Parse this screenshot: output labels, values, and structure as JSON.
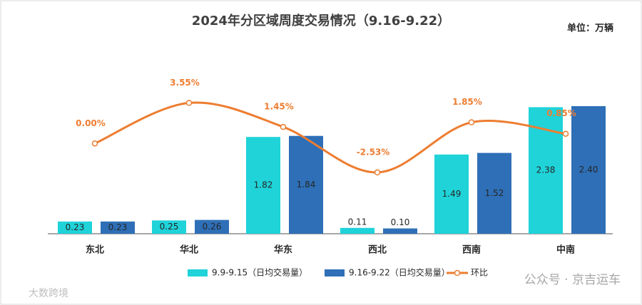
{
  "chart_data": {
    "type": "bar_line",
    "title": "2024年分区域周度交易情况（9.16-9.22）",
    "unit": "单位：万辆",
    "categories": [
      "东北",
      "华北",
      "华东",
      "西北",
      "西南",
      "中南"
    ],
    "ylim": [
      0,
      2.6
    ],
    "y2lim": [
      -7.9,
      4.2
    ],
    "series": [
      {
        "name": "9.9-9.15（日均交易量）",
        "type": "bar",
        "color": "#1fd3d9",
        "values": [
          0.23,
          0.25,
          1.82,
          0.11,
          1.49,
          2.38
        ],
        "value_labels": [
          "0.23",
          "0.25",
          "1.82",
          "0.11",
          "1.49",
          "2.38"
        ]
      },
      {
        "name": "9.16-9.22（日均交易量）",
        "type": "bar",
        "color": "#2e6fb7",
        "values": [
          0.23,
          0.26,
          1.84,
          0.1,
          1.52,
          2.4
        ],
        "value_labels": [
          "0.23",
          "0.26",
          "1.84",
          "0.10",
          "1.52",
          "2.40"
        ]
      },
      {
        "name": "环比",
        "type": "line",
        "axis": "y2",
        "color": "#ed7d31",
        "values": [
          0.0,
          3.55,
          1.45,
          -2.53,
          1.85,
          0.85
        ],
        "value_labels": [
          "0.00%",
          "3.55%",
          "1.45%",
          "-2.53%",
          "1.85%",
          "0.85%"
        ]
      }
    ],
    "watermarks": [
      "公众号 · 京吉运车",
      "大数跨境"
    ]
  }
}
